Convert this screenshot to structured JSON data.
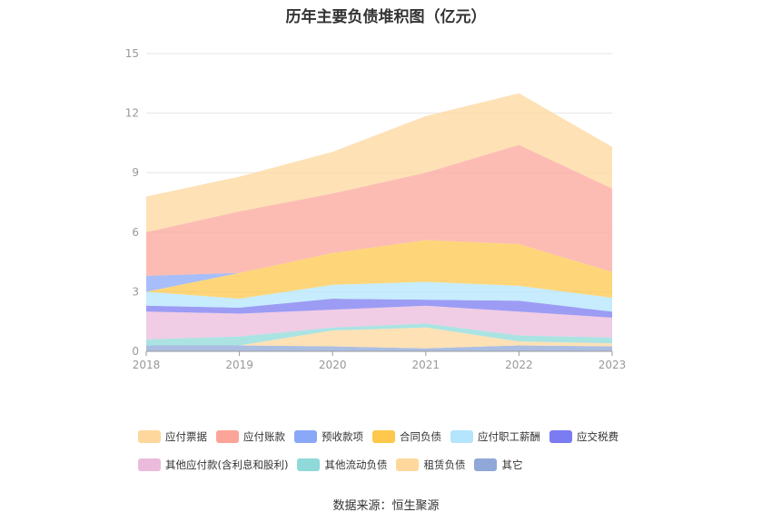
{
  "chart_data": {
    "type": "area",
    "stacked": true,
    "title": "历年主要负债堆积图（亿元）",
    "x": [
      "2018",
      "2019",
      "2020",
      "2021",
      "2022",
      "2023"
    ],
    "ylim": [
      0,
      15
    ],
    "yticks": [
      "0",
      "3",
      "6",
      "9",
      "12",
      "15"
    ],
    "grid": true,
    "legend_position": "bottom",
    "series": [
      {
        "name": "其它",
        "color": "#8fa8d8",
        "values": [
          0.3,
          0.3,
          0.25,
          0.15,
          0.3,
          0.25
        ]
      },
      {
        "name": "租赁负债",
        "color": "#fdd79c",
        "values": [
          0.0,
          0.0,
          0.8,
          1.05,
          0.2,
          0.15
        ]
      },
      {
        "name": "其他流动负债",
        "color": "#8fd9d9",
        "values": [
          0.3,
          0.45,
          0.15,
          0.2,
          0.3,
          0.3
        ]
      },
      {
        "name": "其他应付款(含利息和股利)",
        "color": "#ebbbdc",
        "values": [
          1.4,
          1.15,
          0.9,
          0.9,
          1.2,
          1.0
        ]
      },
      {
        "name": "应交税费",
        "color": "#7b7bf2",
        "values": [
          0.3,
          0.3,
          0.55,
          0.3,
          0.55,
          0.3
        ]
      },
      {
        "name": "应付职工薪酬",
        "color": "#b3e5fc",
        "values": [
          0.7,
          0.45,
          0.7,
          0.9,
          0.75,
          0.7
        ]
      },
      {
        "name": "合同负债",
        "color": "#fec84c",
        "values": [
          0.0,
          1.3,
          1.6,
          2.1,
          2.1,
          1.3
        ]
      },
      {
        "name": "预收款项",
        "color": "#8aa8f8",
        "values": [
          0.8,
          0.0,
          0.0,
          0.0,
          0.0,
          0.0
        ]
      },
      {
        "name": "应付账款",
        "color": "#fba599",
        "values": [
          2.2,
          3.1,
          3.0,
          3.4,
          5.0,
          4.2
        ]
      },
      {
        "name": "应付票据",
        "color": "#fdd79c",
        "values": [
          1.8,
          1.75,
          2.1,
          2.85,
          2.6,
          2.1
        ]
      }
    ]
  },
  "legend": {
    "rows": [
      [
        "应付票据",
        "应付账款",
        "预收款项",
        "合同负债",
        "应付职工薪酬",
        "应交税费"
      ],
      [
        "其他应付款(含利息和股利)",
        "其他流动负债",
        "租赁负债",
        "其它"
      ]
    ]
  },
  "source": "数据来源：恒生聚源"
}
